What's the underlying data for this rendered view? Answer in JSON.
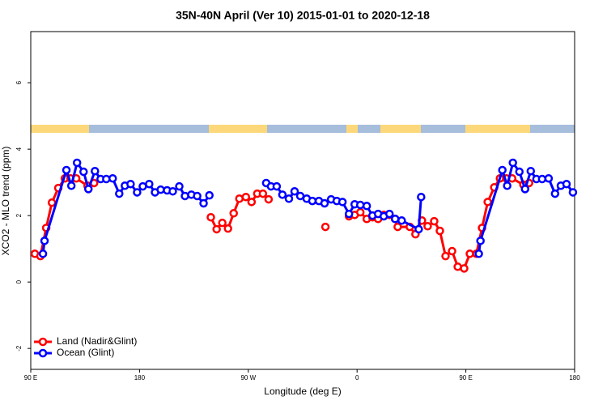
{
  "chart_data": {
    "type": "line",
    "title": "35N-40N April (Ver 10)   2015-01-01 to 2020-12-18",
    "x_label": "Longitude (deg E)",
    "y_label": "XCO2 - MLO trend (ppm)",
    "xlim": [
      90,
      540
    ],
    "xticks": [
      {
        "value": 90,
        "label": "90 E"
      },
      180,
      {
        "value": 270,
        "label": "90 W"
      },
      {
        "value": 360,
        "label": "0"
      },
      {
        "value": 450,
        "label": "90 E"
      },
      {
        "value": 540,
        "label": "180"
      }
    ],
    "ylim": [
      -2.63,
      7.54
    ],
    "yticks": [
      -2,
      0,
      2,
      4,
      6
    ],
    "legend": "bottom left",
    "series": [
      {
        "name": "Land (Nadir&Glint)",
        "color": "#ff0000",
        "x": [
          93.4,
          98,
          102.8,
          107.5,
          112.8,
          118.2,
          122.9,
          127.6,
          137,
          142.4,
          190,
          239,
          243.8,
          248.5,
          253.2,
          257.9,
          262.6,
          268,
          272.7,
          277.4,
          282.1,
          286.8,
          310,
          333.8,
          343,
          353.3,
          358,
          362.7,
          368,
          372.7,
          377.4,
          382.1,
          386.8,
          391.5,
          393.6,
          403.6,
          408.3,
          413.7,
          418.4,
          423.8,
          428.5,
          433.2,
          438.6,
          443.3,
          448.6,
          453.3,
          458.7,
          463.4,
          468.1,
          473.5,
          478.2,
          483.5,
          488.3,
          497.6,
          502.3
        ],
        "values": [
          0.85,
          0.78,
          1.63,
          2.39,
          2.83,
          3.12,
          3.12,
          3.12,
          2.9,
          2.98,
          null,
          1.95,
          1.59,
          1.78,
          1.61,
          2.07,
          2.51,
          2.56,
          2.41,
          2.66,
          2.66,
          2.49,
          null,
          1.66,
          null,
          1.98,
          2.02,
          2.1,
          1.9,
          1.95,
          1.9,
          2.02,
          2.02,
          1.9,
          1.66,
          1.66,
          1.44,
          1.85,
          1.68,
          1.83,
          1.54,
          0.78,
          0.93,
          0.46,
          0.41,
          0.85,
          0.85,
          1.63,
          2.41,
          2.85,
          3.12,
          3.12,
          3.12,
          2.93,
          2.98
        ]
      },
      {
        "name": "Ocean (Glint)",
        "color": "#0000ff",
        "x": [
          100.1,
          101.4,
          119.5,
          123.6,
          128.3,
          133.7,
          137.7,
          143.1,
          147.8,
          152.5,
          157.8,
          163.2,
          167.9,
          172.6,
          178,
          182.7,
          188,
          192.8,
          197.5,
          202.8,
          207.5,
          212.9,
          217.6,
          222.9,
          227.7,
          233,
          237.8,
          260,
          284.8,
          288.8,
          293.5,
          298.2,
          303.6,
          308.3,
          313,
          318.3,
          323,
          328.4,
          333.1,
          338.5,
          343.2,
          347.9,
          353.3,
          358,
          362.7,
          368,
          372.7,
          377.4,
          382.1,
          386.8,
          391.5,
          396.9,
          411,
          413,
          440,
          460.7,
          462.1,
          480.2,
          484.2,
          488.9,
          494.3,
          499,
          503.7,
          508.4,
          513.1,
          518.5,
          523.8,
          528.6,
          533.3,
          538.6
        ],
        "values": [
          0.85,
          1.24,
          3.37,
          2.9,
          3.59,
          3.32,
          2.8,
          3.34,
          3.1,
          3.1,
          3.12,
          2.66,
          2.9,
          2.95,
          2.7,
          2.88,
          2.95,
          2.7,
          2.78,
          2.76,
          2.73,
          2.88,
          2.59,
          2.63,
          2.59,
          2.37,
          2.61,
          null,
          2.98,
          2.88,
          2.88,
          2.63,
          2.51,
          2.73,
          2.59,
          2.51,
          2.44,
          2.44,
          2.37,
          2.49,
          2.44,
          2.41,
          2.05,
          2.34,
          2.32,
          2.29,
          2,
          2.05,
          1.98,
          2.05,
          1.9,
          1.85,
          1.59,
          2.56,
          null,
          0.85,
          1.24,
          3.37,
          2.9,
          3.59,
          3.32,
          2.8,
          3.34,
          3.1,
          3.1,
          3.12,
          2.66,
          2.9,
          2.95,
          2.7
        ]
      }
    ]
  }
}
